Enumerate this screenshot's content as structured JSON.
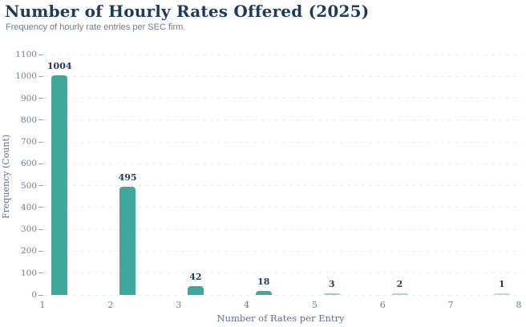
{
  "header": {
    "title": "Number of Hourly Rates Offered (2025)",
    "subtitle": "Frequency of hourly rate entries per SEC firm."
  },
  "chart_data": {
    "type": "bar",
    "title": "Number of Hourly Rates Offered (2025)",
    "subtitle": "Frequency of hourly rate entries per SEC firm.",
    "xlabel": "Number of Rates per Entry",
    "ylabel": "Frequency (Count)",
    "x": [
      1,
      2,
      3,
      4,
      5,
      6,
      8
    ],
    "values": [
      1004,
      495,
      42,
      18,
      3,
      2,
      1
    ],
    "bar_value_labels": [
      "1004",
      "495",
      "42",
      "18",
      "3",
      "2",
      "1"
    ],
    "bar_centers_x": [
      1.25,
      2.25,
      3.25,
      4.25,
      5.25,
      6.25,
      7.75
    ],
    "x_tick_labels": [
      "1",
      "2",
      "3",
      "4",
      "5",
      "6",
      "7",
      "8"
    ],
    "y_ticks": [
      0,
      100,
      200,
      300,
      400,
      500,
      600,
      700,
      800,
      900,
      1000,
      1100
    ],
    "xlim": [
      1,
      8
    ],
    "ylim": [
      0,
      1100
    ],
    "grid": "horizontal-dashed",
    "legend": "none",
    "colors": {
      "bar": "#3fa79b",
      "title": "#1e3a5c",
      "subtitle": "#6e7b8e",
      "axis_text": "#6d7c95",
      "axis_title_text": "#5d6f8c",
      "bar_label": "#1e3a5c",
      "gridline": "#e7e9eb",
      "tick_mark": "#9aa3b0",
      "background": "#ffffff"
    }
  }
}
